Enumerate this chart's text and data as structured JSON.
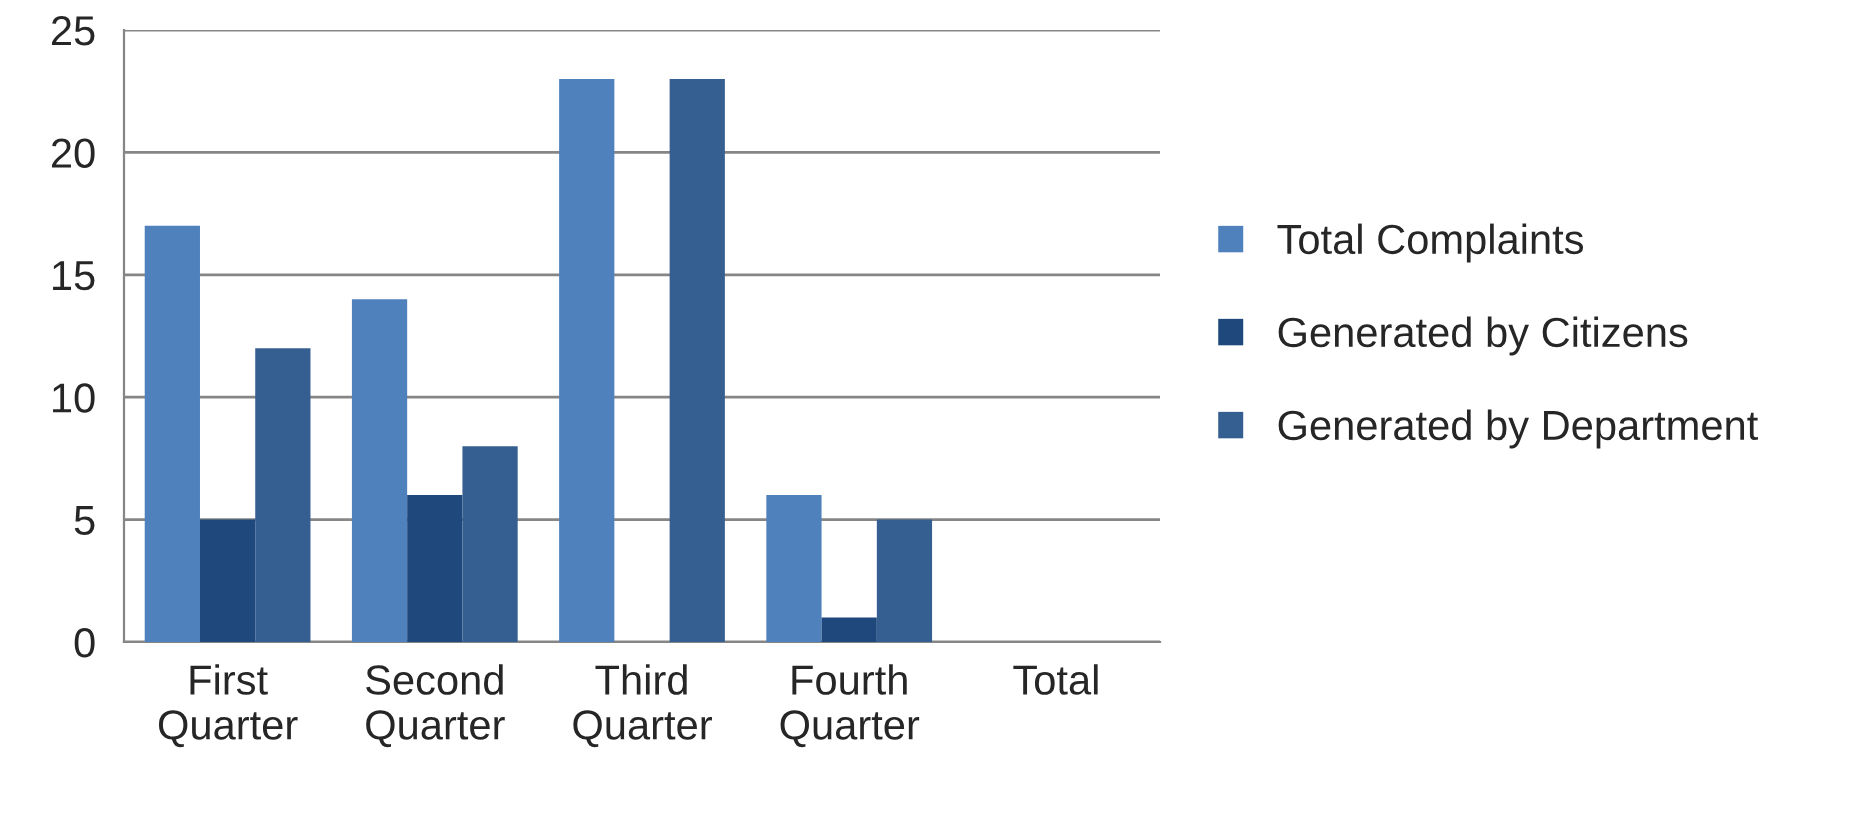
{
  "chart_data": {
    "type": "bar",
    "categories": [
      "First Quarter",
      "Second Quarter",
      "Third Quarter",
      "Fourth Quarter",
      "Total"
    ],
    "series": [
      {
        "name": "Total Complaints",
        "color": "#4f81bd",
        "values": [
          17,
          14,
          23,
          6,
          null
        ]
      },
      {
        "name": "Generated by Citizens",
        "color": "#1f497d",
        "values": [
          5,
          6,
          0,
          1,
          null
        ]
      },
      {
        "name": "Generated by Department",
        "color": "#365f91",
        "values": [
          12,
          8,
          23,
          5,
          null
        ]
      }
    ],
    "ylim": [
      0,
      25
    ],
    "yticks": [
      0,
      5,
      10,
      15,
      20,
      25
    ],
    "grid": "y",
    "legend": "right"
  }
}
